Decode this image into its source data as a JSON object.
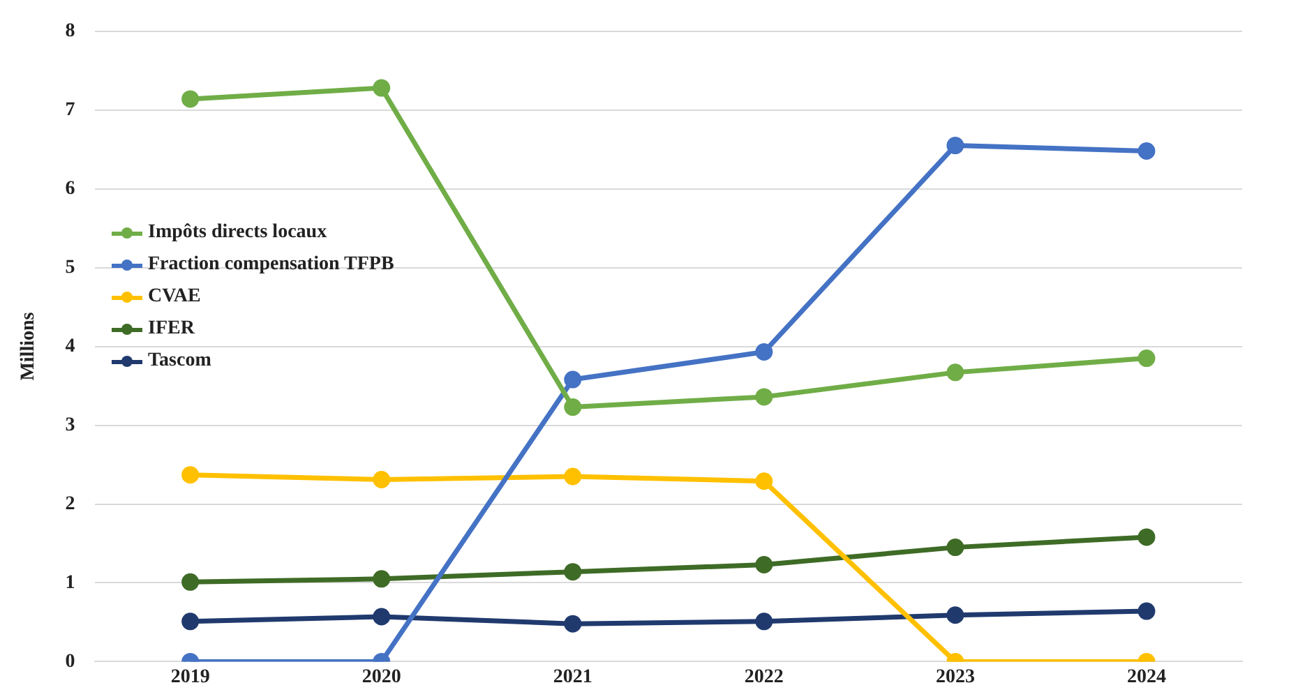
{
  "chart_data": {
    "type": "line",
    "ylabel": "Millions",
    "categories": [
      "2019",
      "2020",
      "2021",
      "2022",
      "2023",
      "2024"
    ],
    "series": [
      {
        "name": "Impôts directs locaux",
        "color": "#70ad47",
        "values": [
          7.14,
          7.28,
          3.23,
          3.36,
          3.67,
          3.85
        ]
      },
      {
        "name": "Fraction compensation TFPB",
        "color": "#4472c4",
        "values": [
          0,
          0,
          3.58,
          3.93,
          6.55,
          6.48
        ]
      },
      {
        "name": "CVAE",
        "color": "#ffc000",
        "values": [
          2.37,
          2.31,
          2.35,
          2.29,
          0,
          0
        ]
      },
      {
        "name": "IFER",
        "color": "#3e6b26",
        "values": [
          1.01,
          1.05,
          1.14,
          1.23,
          1.45,
          1.58
        ]
      },
      {
        "name": "Tascom",
        "color": "#203a6e",
        "values": [
          0.51,
          0.57,
          0.48,
          0.51,
          0.59,
          0.64
        ]
      }
    ],
    "ylim": [
      0,
      8
    ],
    "yticks": [
      0,
      1,
      2,
      3,
      4,
      5,
      6,
      7,
      8
    ],
    "grid": "y",
    "legend": "left",
    "marker": "circle",
    "line_style": "solid"
  }
}
